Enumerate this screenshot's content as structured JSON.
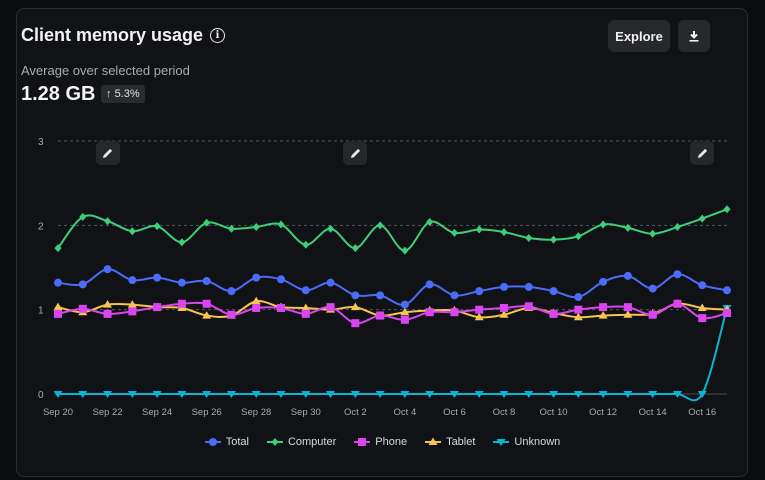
{
  "header": {
    "title": "Client memory usage",
    "info_icon": "info-icon",
    "subtitle": "Average over selected period",
    "value": "1.28 GB",
    "change": "5.3%",
    "change_icon": "arrow-up-icon",
    "explore_label": "Explore",
    "download_icon": "download-icon"
  },
  "annotations": [
    {
      "icon": "pencil-icon",
      "date": "Sep 22"
    },
    {
      "icon": "pencil-icon",
      "date": "Oct 2"
    },
    {
      "icon": "pencil-icon",
      "date": "Oct 16"
    }
  ],
  "chart_data": {
    "type": "line",
    "x": [
      "Sep 20",
      "Sep 21",
      "Sep 22",
      "Sep 23",
      "Sep 24",
      "Sep 25",
      "Sep 26",
      "Sep 27",
      "Sep 28",
      "Sep 29",
      "Sep 30",
      "Oct 1",
      "Oct 2",
      "Oct 3",
      "Oct 4",
      "Oct 5",
      "Oct 6",
      "Oct 7",
      "Oct 8",
      "Oct 9",
      "Oct 10",
      "Oct 11",
      "Oct 12",
      "Oct 13",
      "Oct 14",
      "Oct 15",
      "Oct 16",
      "Oct 17"
    ],
    "xticks": [
      "Sep 20",
      "Sep 22",
      "Sep 24",
      "Sep 26",
      "Sep 28",
      "Sep 30",
      "Oct 2",
      "Oct 4",
      "Oct 6",
      "Oct 8",
      "Oct 10",
      "Oct 12",
      "Oct 14",
      "Oct 16"
    ],
    "yticks": [
      "0",
      "1",
      "2",
      "3"
    ],
    "ylim": [
      0,
      3
    ],
    "grid": true,
    "legend": "bottom",
    "series": [
      {
        "name": "Total",
        "color": "#4a6cf7",
        "marker": "circle",
        "values": [
          1.32,
          1.3,
          1.48,
          1.35,
          1.38,
          1.32,
          1.34,
          1.22,
          1.38,
          1.36,
          1.23,
          1.32,
          1.17,
          1.17,
          1.06,
          1.3,
          1.17,
          1.22,
          1.27,
          1.27,
          1.22,
          1.15,
          1.33,
          1.4,
          1.25,
          1.42,
          1.29,
          1.23
        ]
      },
      {
        "name": "Computer",
        "color": "#3ecf7a",
        "marker": "diamond",
        "values": [
          1.73,
          2.1,
          2.05,
          1.93,
          1.99,
          1.8,
          2.03,
          1.96,
          1.98,
          2.01,
          1.77,
          1.96,
          1.73,
          2.0,
          1.7,
          2.04,
          1.91,
          1.95,
          1.92,
          1.85,
          1.83,
          1.87,
          2.01,
          1.97,
          1.9,
          1.98,
          2.08,
          2.19
        ]
      },
      {
        "name": "Phone",
        "color": "#d946ef",
        "marker": "square",
        "values": [
          0.95,
          1.01,
          0.95,
          0.98,
          1.03,
          1.07,
          1.07,
          0.94,
          1.02,
          1.02,
          0.95,
          1.03,
          0.84,
          0.93,
          0.88,
          0.97,
          0.97,
          1.0,
          1.02,
          1.04,
          0.95,
          1.0,
          1.03,
          1.03,
          0.94,
          1.07,
          0.9,
          0.96
        ]
      },
      {
        "name": "Tablet",
        "color": "#f5c451",
        "marker": "triangle",
        "values": [
          1.03,
          0.97,
          1.06,
          1.06,
          1.03,
          1.02,
          0.93,
          0.93,
          1.1,
          1.03,
          1.02,
          1.0,
          1.03,
          0.93,
          0.97,
          0.99,
          0.99,
          0.91,
          0.94,
          1.02,
          0.96,
          0.91,
          0.93,
          0.94,
          0.95,
          1.07,
          1.02,
          1.0
        ]
      },
      {
        "name": "Unknown",
        "color": "#06b6d4",
        "marker": "triangle-down",
        "values": [
          0,
          0,
          0,
          0,
          0,
          0,
          0,
          0,
          0,
          0,
          0,
          0,
          0,
          0,
          0,
          0,
          0,
          0,
          0,
          0,
          0,
          0,
          0,
          0,
          0,
          0,
          0,
          1.02
        ]
      }
    ]
  }
}
